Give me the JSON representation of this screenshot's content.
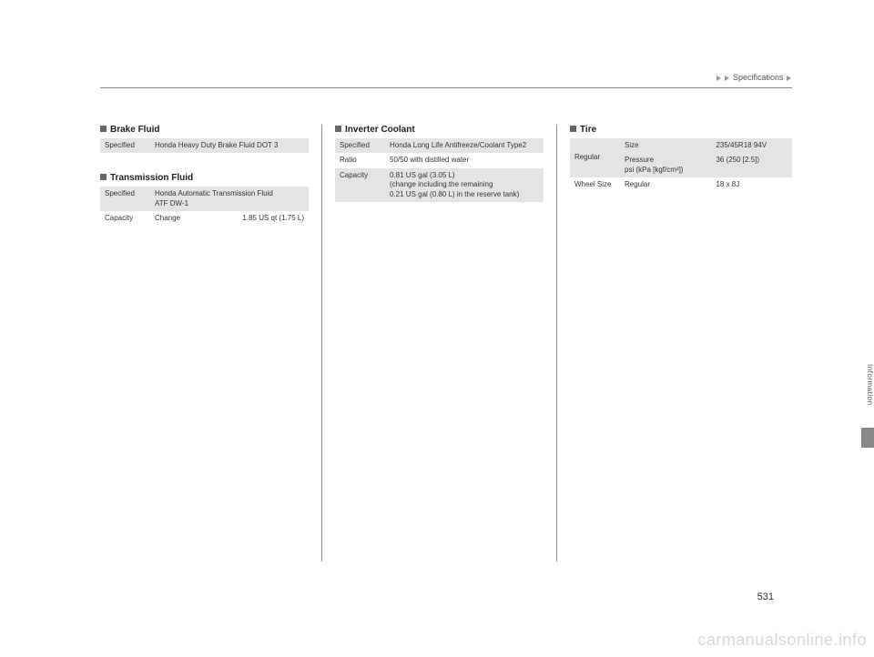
{
  "breadcrumb": {
    "label": "Specifications"
  },
  "side_tab": {
    "label": "Information"
  },
  "page_number": "531",
  "watermark": "carmanualsonline.info",
  "col1": {
    "brake_fluid": {
      "title": "Brake Fluid",
      "rows": [
        {
          "label": "Specified",
          "value": "Honda Heavy Duty Brake Fluid DOT 3"
        }
      ]
    },
    "transmission_fluid": {
      "title": "Transmission Fluid",
      "rows": [
        {
          "label": "Specified",
          "value": "Honda Automatic Transmission Fluid\nATF DW-1"
        },
        {
          "label": "Capacity",
          "sub": "Change",
          "value": "1.85 US qt (1.75 L)"
        }
      ]
    }
  },
  "col2": {
    "inverter_coolant": {
      "title": "Inverter Coolant",
      "rows": [
        {
          "label": "Specified",
          "value": "Honda Long Life Antifreeze/Coolant Type2"
        },
        {
          "label": "Ratio",
          "value": "50/50 with distilled water"
        },
        {
          "label": "Capacity",
          "value": "0.81 US gal (3.05 L)\n(change including the remaining\n0.21 US gal (0.80 L) in the reserve tank)"
        }
      ]
    }
  },
  "col3": {
    "tire": {
      "title": "Tire",
      "regular_label": "Regular",
      "rows": [
        {
          "sub": "Size",
          "value": "235/45R18 94V"
        },
        {
          "sub": "Pressure\npsi (kPa [kgf/cm²])",
          "value": "36 (250 [2.5])"
        },
        {
          "label": "Wheel Size",
          "sub": "Regular",
          "value": "18 x 8J"
        }
      ]
    }
  }
}
